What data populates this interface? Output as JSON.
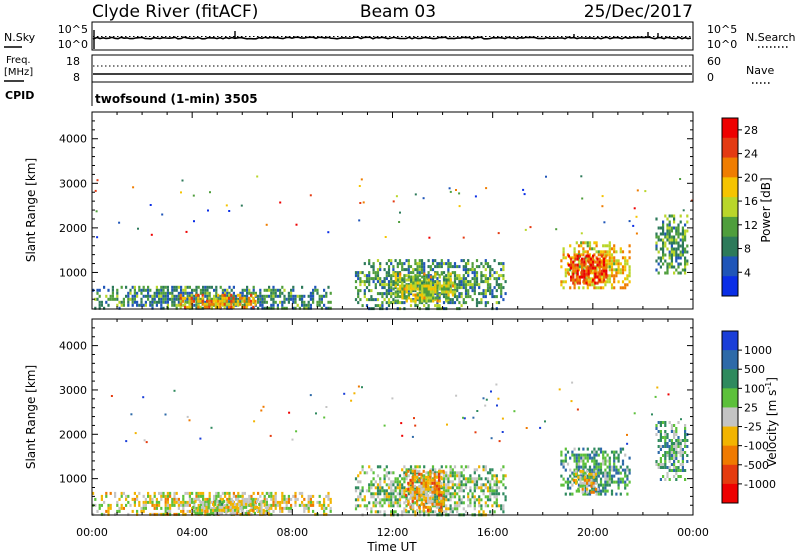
{
  "header": {
    "station": "Clyde River (fitACF)",
    "beam": "Beam 03",
    "date": "25/Dec/2017"
  },
  "noise_panel": {
    "left_label": "N.Sky",
    "right_label": "N.Search",
    "left_ticks": [
      "10^5",
      "10^0"
    ],
    "right_ticks": [
      "10^5",
      "10^0"
    ]
  },
  "freq_panel": {
    "left_label_1": "Freq.",
    "left_label_2": "[MHz]",
    "left_ticks": [
      "18",
      "8"
    ],
    "right_label": "Nave",
    "right_ticks": [
      "60",
      "0"
    ],
    "cpid_label": "CPID",
    "cpid_value": "twofsound (1-min) 3505"
  },
  "colors": {
    "power_scale": [
      "#0a2ee6",
      "#1f55b8",
      "#2d7a5a",
      "#4f9e3c",
      "#b9d62a",
      "#f5c400",
      "#ef7d00",
      "#e43a12",
      "#ee0000"
    ],
    "velocity_scale": [
      "#1a3ed8",
      "#2e6aa8",
      "#2f8a5e",
      "#5cc03a",
      "#c4c4c4",
      "#f2b400",
      "#ef7a00",
      "#e53b0e",
      "#ee0000"
    ]
  },
  "chart_data": [
    {
      "type": "heatmap",
      "title": "Power",
      "xlabel": "Time UT",
      "ylabel": "Slant Range [km]",
      "x_ticks": [
        "00:00",
        "04:00",
        "08:00",
        "12:00",
        "16:00",
        "20:00",
        "00:00"
      ],
      "xlim": [
        0,
        24
      ],
      "y_ticks": [
        "1000",
        "2000",
        "3000",
        "4000"
      ],
      "ylim": [
        180,
        4600
      ],
      "colorbar": {
        "label": "Power [dB]",
        "ticks": [
          "28",
          "24",
          "20",
          "16",
          "12",
          "8",
          "4"
        ],
        "range": [
          0,
          30
        ]
      },
      "echo_regions": [
        {
          "t_start": 0.0,
          "t_end": 9.5,
          "r_min": 180,
          "r_max": 700,
          "value": 9
        },
        {
          "t_start": 3.5,
          "t_end": 6.5,
          "r_min": 200,
          "r_max": 520,
          "value": 20
        },
        {
          "t_start": 10.5,
          "t_end": 16.5,
          "r_min": 180,
          "r_max": 1300,
          "value": 10
        },
        {
          "t_start": 12.0,
          "t_end": 14.5,
          "r_min": 350,
          "r_max": 1000,
          "value": 15
        },
        {
          "t_start": 18.7,
          "t_end": 21.5,
          "r_min": 650,
          "r_max": 1700,
          "value": 18
        },
        {
          "t_start": 19.0,
          "t_end": 20.5,
          "r_min": 750,
          "r_max": 1400,
          "value": 26
        },
        {
          "t_start": 22.5,
          "t_end": 23.8,
          "r_min": 1000,
          "r_max": 2300,
          "value": 11
        }
      ]
    },
    {
      "type": "heatmap",
      "title": "Velocity",
      "xlabel": "Time UT",
      "ylabel": "Slant Range [km]",
      "x_ticks": [
        "00:00",
        "04:00",
        "08:00",
        "12:00",
        "16:00",
        "20:00",
        "00:00"
      ],
      "xlim": [
        0,
        24
      ],
      "y_ticks": [
        "1000",
        "2000",
        "3000",
        "4000"
      ],
      "ylim": [
        180,
        4600
      ],
      "colorbar": {
        "label": "Velocity [m s^-1]",
        "ticks": [
          "1000",
          "500",
          "100",
          "25",
          "-25",
          "-100",
          "-500",
          "-1000"
        ],
        "range": [
          -1000,
          1000
        ]
      },
      "echo_regions": [
        {
          "t_start": 0.0,
          "t_end": 9.5,
          "r_min": 180,
          "r_max": 700,
          "value": -50
        },
        {
          "t_start": 4.0,
          "t_end": 7.0,
          "r_min": 200,
          "r_max": 520,
          "value": 0
        },
        {
          "t_start": 10.5,
          "t_end": 16.5,
          "r_min": 180,
          "r_max": 1300,
          "value": 150
        },
        {
          "t_start": 12.5,
          "t_end": 14.0,
          "r_min": 300,
          "r_max": 1200,
          "value": -300
        },
        {
          "t_start": 18.7,
          "t_end": 21.5,
          "r_min": 650,
          "r_max": 1700,
          "value": 400
        },
        {
          "t_start": 19.2,
          "t_end": 20.2,
          "r_min": 700,
          "r_max": 1200,
          "value": -200
        },
        {
          "t_start": 22.5,
          "t_end": 23.8,
          "r_min": 1000,
          "r_max": 2300,
          "value": 300
        }
      ]
    }
  ]
}
